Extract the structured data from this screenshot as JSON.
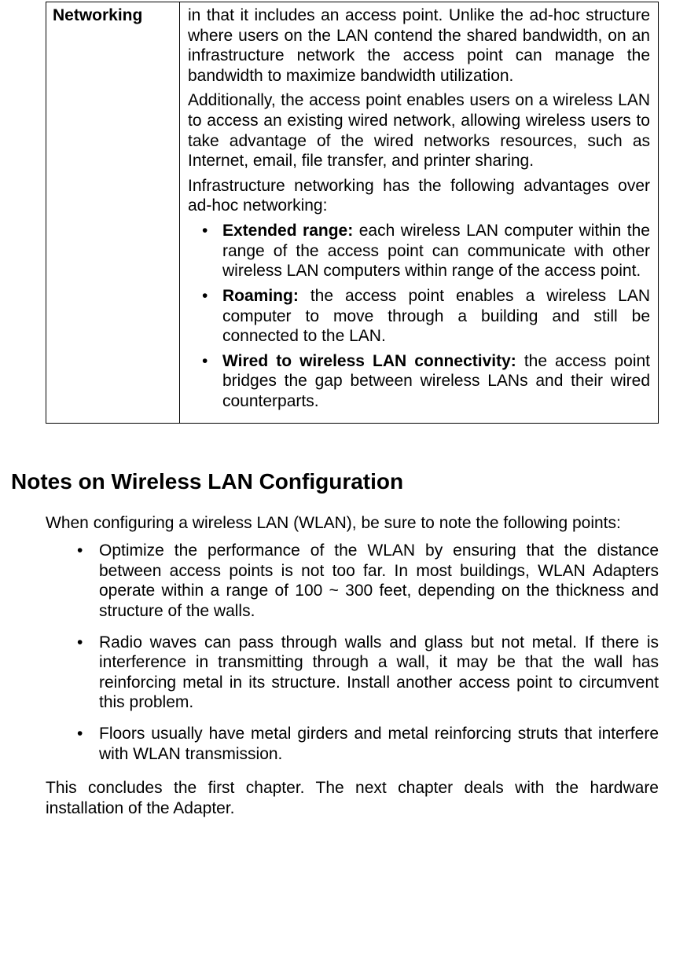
{
  "table": {
    "left_heading": "Networking",
    "para1": "in that it includes an access point. Unlike the ad-hoc structure where users on the LAN contend the shared bandwidth, on an infrastructure network the access point can manage the bandwidth to maximize bandwidth utilization.",
    "para2": "Additionally, the access point enables users on a wireless LAN to access an existing wired network, allowing wireless users to take advantage of the wired networks resources, such as Internet, email, file transfer, and printer sharing.",
    "para3": "Infrastructure networking has the following advantages over ad-hoc networking:",
    "bullets": [
      {
        "lead": "Extended range:",
        "text": " each wireless LAN computer within the range of the access point can communicate with other wireless LAN computers within range of the access point."
      },
      {
        "lead": "Roaming:",
        "text": " the access point enables a wireless LAN computer to move through a building and still be connected to the LAN."
      },
      {
        "lead": "Wired to wireless LAN connectivity:",
        "text": " the access point bridges the gap between wireless LANs and their wired counterparts."
      }
    ]
  },
  "section_heading": "Notes on Wireless LAN Configuration",
  "intro": "When configuring a wireless LAN (WLAN), be sure to note the following points:",
  "notes": [
    "Optimize the performance of the WLAN by ensuring that the distance between access points is not too far. In most buildings, WLAN Adapters operate within a range of 100 ~ 300 feet, depending on the thickness and structure of the walls.",
    "Radio waves can pass through walls and glass but not metal. If there is interference in transmitting through a wall, it may be that the wall has reinforcing metal in its structure. Install another access point to circumvent this problem.",
    "Floors usually have metal girders and metal reinforcing struts that interfere with WLAN transmission."
  ],
  "closing": "This concludes the first chapter.   The next chapter deals with the hardware installation of the Adapter."
}
